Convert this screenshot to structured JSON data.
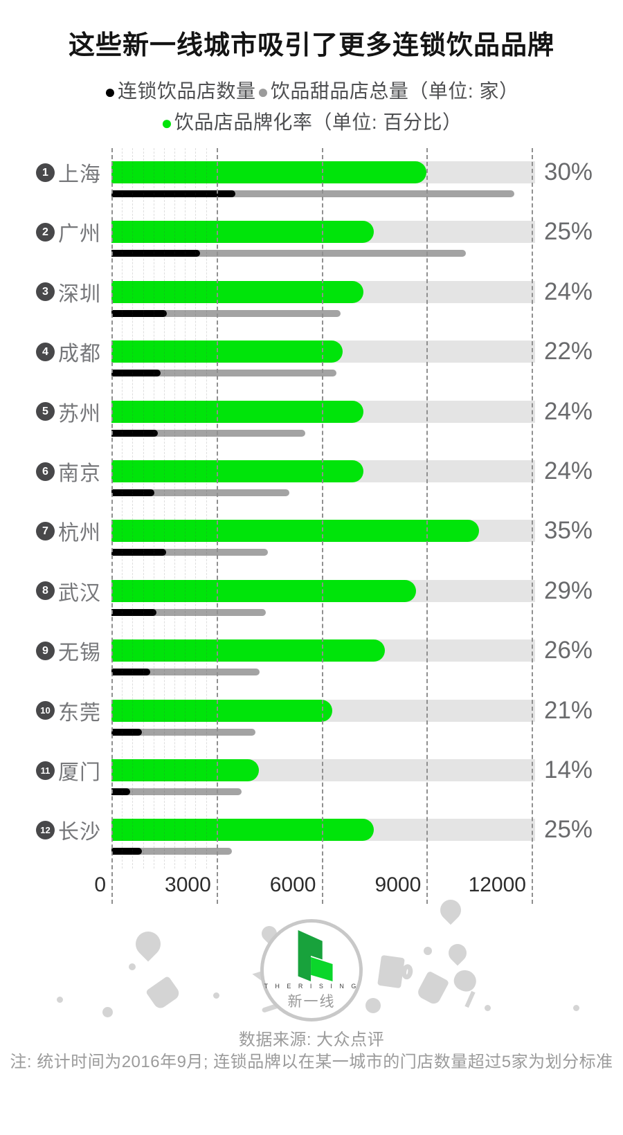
{
  "title": "这些新一线城市吸引了更多连锁饮品品牌",
  "legend": {
    "items": [
      {
        "label": "连锁饮品店数量",
        "color": "#000000"
      },
      {
        "label": "饮品甜品店总量（单位: 家）",
        "color": "#9b9b9b"
      },
      {
        "label": "饮品店品牌化率（单位: 百分比）",
        "color": "#00e40a"
      }
    ]
  },
  "chart_data": {
    "type": "bar",
    "orientation": "horizontal",
    "x_axis": {
      "ticks": [
        "0",
        "3000",
        "6000",
        "9000",
        "12000"
      ],
      "max": 12000,
      "minor_gridline_step": 300,
      "minor_gridlines_until": 3000,
      "gridstyle": "dashed"
    },
    "series_meaning": {
      "green_bar": "饮品店品牌化率 (%, 40% = full axis width, i.e. pct*300 on the 0-12000 axis)",
      "black_bar": "连锁饮品店数量 (家)",
      "gray_bar": "饮品甜品店总量 (家)"
    },
    "cities": [
      {
        "rank": "1",
        "name": "上海",
        "brand_rate_pct": 30,
        "pct_label": "30%",
        "chain_stores": 3530,
        "total_stores": 11510
      },
      {
        "rank": "2",
        "name": "广州",
        "brand_rate_pct": 25,
        "pct_label": "25%",
        "chain_stores": 2530,
        "total_stores": 10130
      },
      {
        "rank": "3",
        "name": "深圳",
        "brand_rate_pct": 24,
        "pct_label": "24%",
        "chain_stores": 1590,
        "total_stores": 6550
      },
      {
        "rank": "4",
        "name": "成都",
        "brand_rate_pct": 22,
        "pct_label": "22%",
        "chain_stores": 1410,
        "total_stores": 6420
      },
      {
        "rank": "5",
        "name": "苏州",
        "brand_rate_pct": 24,
        "pct_label": "24%",
        "chain_stores": 1320,
        "total_stores": 5540
      },
      {
        "rank": "6",
        "name": "南京",
        "brand_rate_pct": 24,
        "pct_label": "24%",
        "chain_stores": 1230,
        "total_stores": 5080
      },
      {
        "rank": "7",
        "name": "杭州",
        "brand_rate_pct": 35,
        "pct_label": "35%",
        "chain_stores": 1570,
        "total_stores": 4470
      },
      {
        "rank": "8",
        "name": "武汉",
        "brand_rate_pct": 29,
        "pct_label": "29%",
        "chain_stores": 1280,
        "total_stores": 4400
      },
      {
        "rank": "9",
        "name": "无锡",
        "brand_rate_pct": 26,
        "pct_label": "26%",
        "chain_stores": 1100,
        "total_stores": 4230
      },
      {
        "rank": "10",
        "name": "东莞",
        "brand_rate_pct": 21,
        "pct_label": "21%",
        "chain_stores": 860,
        "total_stores": 4120
      },
      {
        "rank": "11",
        "name": "厦门",
        "brand_rate_pct": 14,
        "pct_label": "14%",
        "chain_stores": 540,
        "total_stores": 3720
      },
      {
        "rank": "12",
        "name": "长沙",
        "brand_rate_pct": 25,
        "pct_label": "25%",
        "chain_stores": 860,
        "total_stores": 3430
      }
    ],
    "colors": {
      "green": "#00e40a",
      "black": "#000000",
      "gray_bar": "#a3a3a3",
      "track": "#e4e4e4",
      "badge": "#48484a",
      "gridline": "#8f8f8f"
    }
  },
  "logo": {
    "en": "T H E  R I S I N G",
    "zh": "新一线"
  },
  "footer": {
    "source": "数据来源: 大众点评",
    "note": "注: 统计时间为2016年9月; 连锁品牌以在某一城市的门店数量超过5家为划分标准"
  }
}
